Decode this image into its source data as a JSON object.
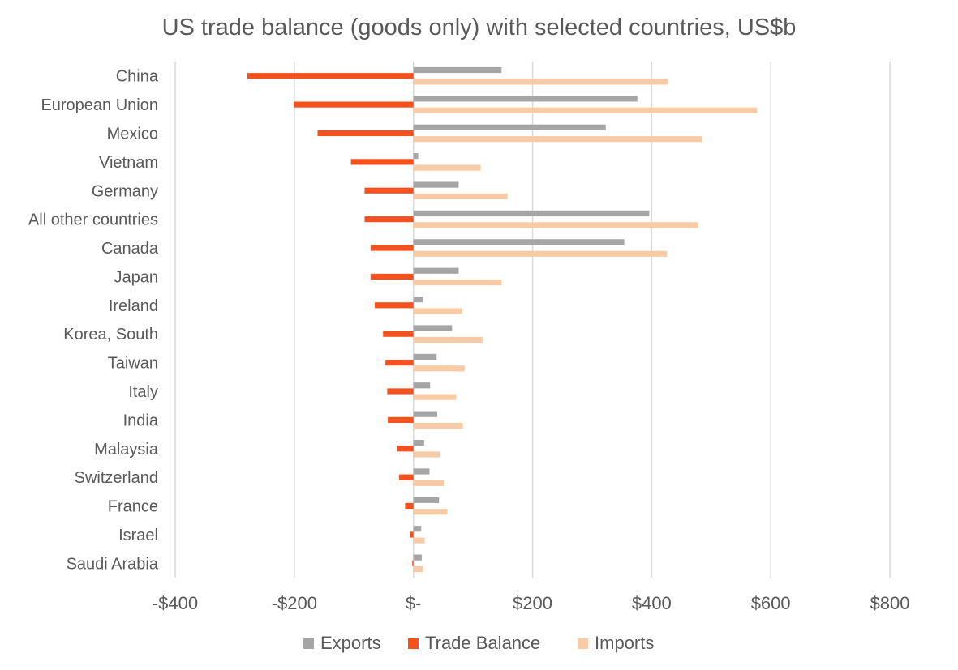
{
  "chart_data": {
    "type": "bar",
    "orientation": "horizontal",
    "title": "US trade balance (goods only) with selected countries, US$b",
    "categories": [
      "China",
      "European Union",
      "Mexico",
      "Vietnam",
      "Germany",
      "All other countries",
      "Canada",
      "Japan",
      "Ireland",
      "Korea, South",
      "Taiwan",
      "Italy",
      "India",
      "Malaysia",
      "Switzerland",
      "France",
      "Israel",
      "Saudi Arabia"
    ],
    "series": [
      {
        "name": "Exports",
        "color": "#a5a5a5",
        "values": [
          148,
          376,
          323,
          8,
          76,
          396,
          354,
          76,
          16,
          65,
          39,
          28,
          40,
          18,
          27,
          43,
          13,
          14
        ]
      },
      {
        "name": "Trade Balance",
        "color": "#f4511e",
        "values": [
          -279,
          -201,
          -161,
          -105,
          -82,
          -82,
          -72,
          -72,
          -65,
          -51,
          -47,
          -44,
          -43,
          -27,
          -24,
          -14,
          -6,
          -2
        ]
      },
      {
        "name": "Imports",
        "color": "#f8cba6",
        "values": [
          427,
          577,
          484,
          113,
          158,
          478,
          426,
          148,
          81,
          116,
          86,
          72,
          83,
          45,
          51,
          57,
          19,
          16
        ]
      }
    ],
    "xlim": [
      -400,
      800
    ],
    "xticks": [
      -400,
      -200,
      0,
      200,
      400,
      600,
      800
    ],
    "xtick_labels": [
      "-$400",
      "-$200",
      "$-",
      "$200",
      "$400",
      "$600",
      "$800"
    ],
    "grid": "vertical",
    "legend": "bottom"
  }
}
